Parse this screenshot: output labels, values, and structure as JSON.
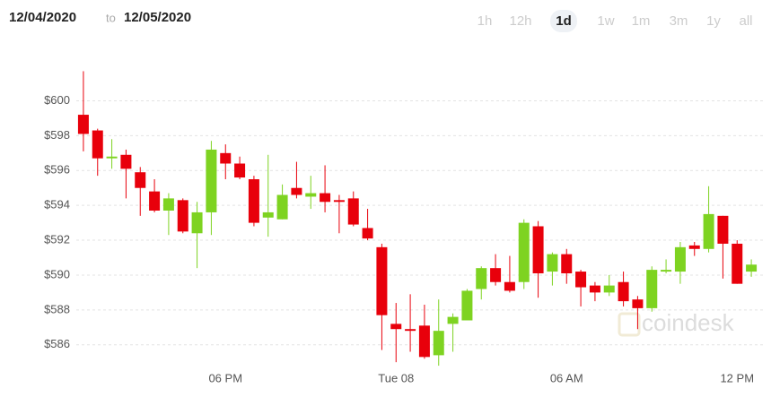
{
  "header": {
    "from": "12/04/2020",
    "connector": "to",
    "to": "12/05/2020",
    "ranges": [
      "1h",
      "12h",
      "1d",
      "1w",
      "1m",
      "3m",
      "1y",
      "all"
    ],
    "selected_range": "1d"
  },
  "chart_data": {
    "type": "candlestick",
    "watermark": "coindesk",
    "categories": [
      null,
      null,
      null,
      null,
      null,
      null,
      null,
      null,
      null,
      null,
      "06 PM",
      null,
      null,
      null,
      null,
      null,
      null,
      null,
      null,
      null,
      null,
      null,
      "Tue 08",
      null,
      null,
      null,
      null,
      null,
      null,
      null,
      null,
      null,
      null,
      null,
      "06 AM",
      null,
      null,
      null,
      null,
      null,
      null,
      null,
      null,
      null,
      null,
      null,
      "12 PM",
      null
    ],
    "open": [
      599.2,
      598.3,
      596.7,
      596.9,
      595.9,
      594.8,
      593.7,
      594.3,
      592.4,
      593.6,
      597.0,
      596.4,
      595.5,
      593.3,
      593.2,
      595.0,
      594.5,
      594.7,
      594.3,
      594.4,
      592.7,
      591.6,
      587.2,
      586.9,
      587.1,
      585.4,
      587.2,
      587.4,
      589.2,
      590.4,
      589.6,
      589.6,
      592.8,
      590.2,
      591.2,
      590.2,
      589.4,
      589.0,
      589.6,
      588.6,
      588.1,
      590.2,
      590.2,
      591.7,
      591.5,
      593.4,
      591.8,
      590.2
    ],
    "high": [
      601.7,
      598.4,
      597.8,
      597.2,
      596.2,
      595.5,
      594.7,
      594.4,
      594.2,
      597.7,
      597.5,
      596.8,
      595.7,
      596.9,
      595.2,
      596.5,
      595.7,
      596.3,
      594.6,
      594.8,
      593.8,
      591.8,
      588.4,
      588.9,
      588.3,
      588.6,
      587.8,
      589.2,
      590.5,
      591.2,
      591.1,
      593.2,
      593.1,
      591.3,
      591.5,
      590.3,
      589.6,
      590.0,
      590.2,
      588.8,
      590.5,
      590.9,
      591.9,
      591.9,
      595.1,
      593.4,
      592.0,
      590.9
    ],
    "low": [
      597.1,
      595.7,
      596.1,
      594.4,
      593.4,
      593.6,
      592.3,
      592.4,
      590.4,
      592.3,
      595.5,
      595.5,
      592.8,
      592.2,
      593.2,
      594.4,
      593.8,
      593.6,
      592.4,
      592.8,
      592.0,
      585.7,
      585.0,
      585.6,
      585.2,
      584.8,
      585.6,
      587.4,
      588.6,
      589.4,
      589.0,
      589.2,
      588.7,
      589.4,
      589.5,
      588.2,
      588.5,
      588.8,
      588.2,
      586.9,
      587.9,
      590.1,
      589.5,
      591.1,
      591.3,
      589.8,
      589.5,
      589.9
    ],
    "close": [
      598.1,
      596.7,
      596.8,
      596.1,
      595.0,
      593.7,
      594.4,
      592.5,
      593.6,
      597.2,
      596.4,
      595.6,
      593.0,
      593.6,
      594.6,
      594.6,
      594.7,
      594.2,
      594.2,
      592.9,
      592.1,
      587.7,
      586.9,
      586.8,
      585.3,
      586.8,
      587.6,
      589.1,
      590.4,
      589.6,
      589.1,
      593.0,
      590.1,
      591.2,
      590.1,
      589.3,
      589.0,
      589.4,
      588.5,
      588.1,
      590.3,
      590.3,
      591.6,
      591.5,
      593.5,
      591.8,
      589.5,
      590.6
    ],
    "up_color": "#7ed321",
    "down_color": "#e8000b",
    "ylim": [
      584.7,
      602.7
    ],
    "yticks": [
      {
        "value": 586,
        "label": "$586"
      },
      {
        "value": 588,
        "label": "$588"
      },
      {
        "value": 590,
        "label": "$590"
      },
      {
        "value": 592,
        "label": "$592"
      },
      {
        "value": 594,
        "label": "$594"
      },
      {
        "value": 596,
        "label": "$596"
      },
      {
        "value": 598,
        "label": "$598"
      },
      {
        "value": 600,
        "label": "$600"
      }
    ],
    "grid": true
  }
}
